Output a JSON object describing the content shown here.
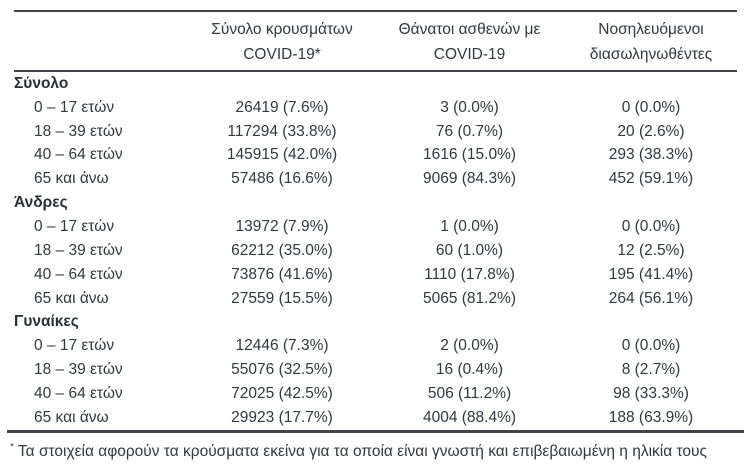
{
  "page": {
    "background_color": "#ffffff",
    "text_color": "#33373e",
    "rule_color": "#3f434a"
  },
  "table": {
    "col_headers": [
      {
        "line1": "Σύνολο κρουσμάτων",
        "line2": "COVID-19*"
      },
      {
        "line1": "Θάνατοι ασθενών με",
        "line2": "COVID-19"
      },
      {
        "line1": "Νοσηλευόμενοι",
        "line2": "διασωληνωθέντες"
      }
    ],
    "groups": [
      {
        "label": "Σύνολο",
        "rows": [
          {
            "age": "0 – 17 ετών",
            "cases": "26419 (7.6%)",
            "deaths": "3 (0.0%)",
            "intubated": "0 (0.0%)"
          },
          {
            "age": "18 – 39 ετών",
            "cases": "117294 (33.8%)",
            "deaths": "76 (0.7%)",
            "intubated": "20 (2.6%)"
          },
          {
            "age": "40 – 64 ετών",
            "cases": "145915 (42.0%)",
            "deaths": "1616 (15.0%)",
            "intubated": "293 (38.3%)"
          },
          {
            "age": "65 και άνω",
            "cases": "57486 (16.6%)",
            "deaths": "9069 (84.3%)",
            "intubated": "452 (59.1%)"
          }
        ]
      },
      {
        "label": "Άνδρες",
        "rows": [
          {
            "age": "0 – 17 ετών",
            "cases": "13972 (7.9%)",
            "deaths": "1 (0.0%)",
            "intubated": "0 (0.0%)"
          },
          {
            "age": "18 – 39 ετών",
            "cases": "62212 (35.0%)",
            "deaths": "60 (1.0%)",
            "intubated": "12 (2.5%)"
          },
          {
            "age": "40 – 64 ετών",
            "cases": "73876 (41.6%)",
            "deaths": "1110 (17.8%)",
            "intubated": "195 (41.4%)"
          },
          {
            "age": "65 και άνω",
            "cases": "27559 (15.5%)",
            "deaths": "5065 (81.2%)",
            "intubated": "264 (56.1%)"
          }
        ]
      },
      {
        "label": "Γυναίκες",
        "rows": [
          {
            "age": "0 – 17 ετών",
            "cases": "12446 (7.3%)",
            "deaths": "2 (0.0%)",
            "intubated": "0 (0.0%)"
          },
          {
            "age": "18 – 39 ετών",
            "cases": "55076 (32.5%)",
            "deaths": "16 (0.4%)",
            "intubated": "8 (2.7%)"
          },
          {
            "age": "40 – 64 ετών",
            "cases": "72025 (42.5%)",
            "deaths": "506 (11.2%)",
            "intubated": "98 (33.3%)"
          },
          {
            "age": "65 και άνω",
            "cases": "29923 (17.7%)",
            "deaths": "4004 (88.4%)",
            "intubated": "188 (63.9%)"
          }
        ]
      }
    ]
  },
  "footnote": {
    "marker": "*",
    "text": "Τα στοιχεία αφορούν τα κρούσματα εκείνα για τα οποία είναι γνωστή και επιβεβαιωμένη η ηλικία τους"
  }
}
